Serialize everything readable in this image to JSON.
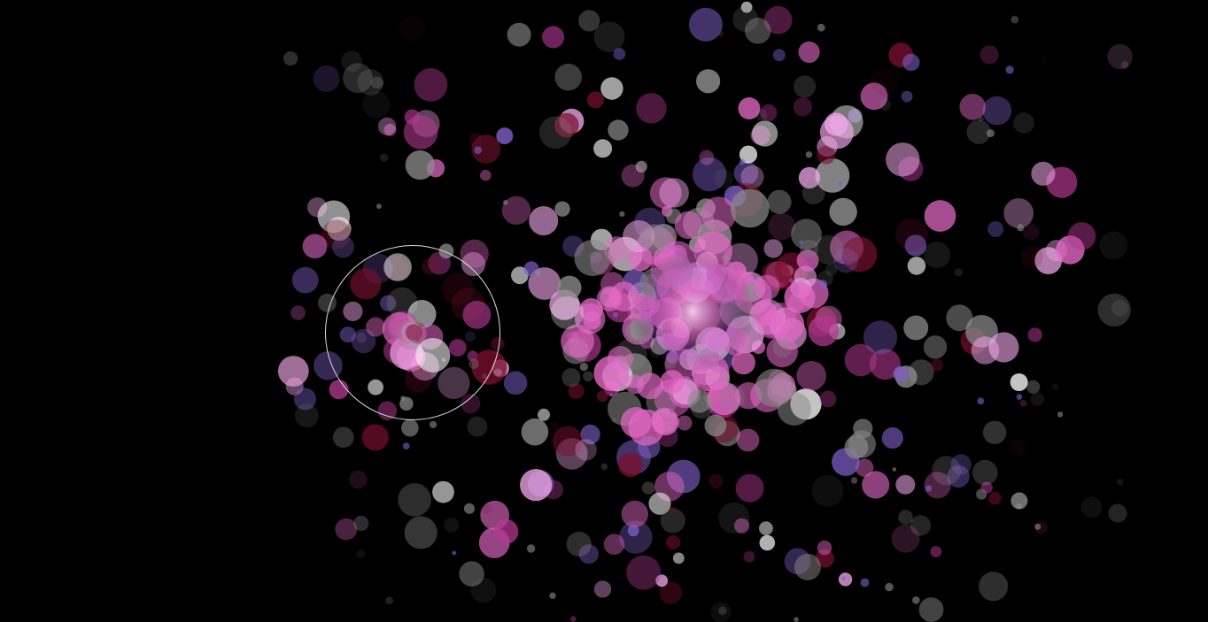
{
  "scene": {
    "background": "#000000",
    "palette": {
      "pink": "#e46ac6",
      "light_pink": "#f2a8ea",
      "magenta": "#b0388e",
      "violet": "#8060c8",
      "gray": "#8c8c8c",
      "deep_red": "#7a1030",
      "white": "#f5f5f5"
    }
  },
  "cursor": {
    "shape": "ring",
    "color": "#dcdcdc"
  }
}
